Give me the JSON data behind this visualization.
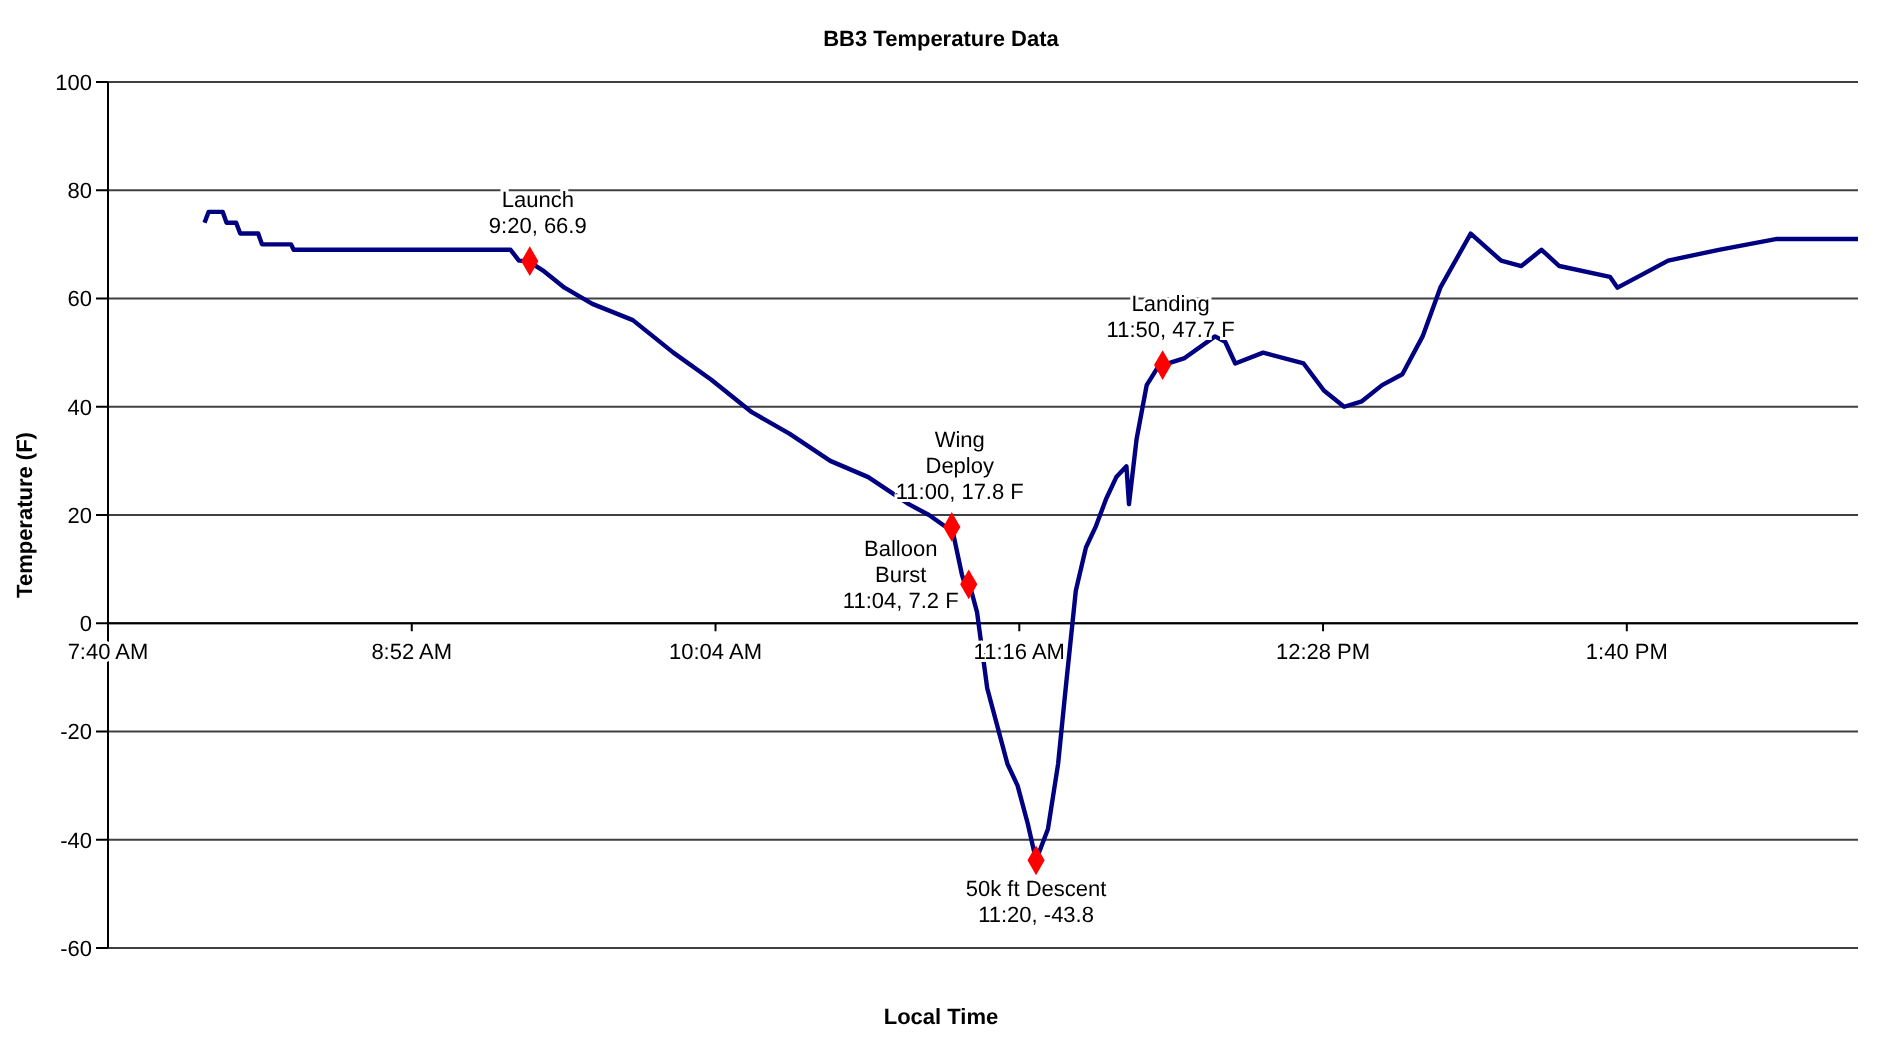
{
  "chart_data": {
    "type": "line",
    "title": "BB3 Temperature Data",
    "xlabel": "Local Time",
    "ylabel": "Temperature (F)",
    "xlim": [
      7.6667,
      14.58
    ],
    "ylim": [
      -60,
      100
    ],
    "xticks": [
      {
        "value": 7.6667,
        "label": "7:40 AM"
      },
      {
        "value": 8.8667,
        "label": "8:52 AM"
      },
      {
        "value": 10.0667,
        "label": "10:04 AM"
      },
      {
        "value": 11.2667,
        "label": "11:16 AM"
      },
      {
        "value": 12.4667,
        "label": "12:28 PM"
      },
      {
        "value": 13.6667,
        "label": "1:40 PM"
      }
    ],
    "yticks": [
      -60,
      -40,
      -20,
      0,
      20,
      40,
      60,
      80,
      100
    ],
    "grid": "y",
    "legend": false,
    "series": [
      {
        "color": "#000080",
        "marker": "none",
        "x": [
          8.048,
          8.064,
          8.12,
          8.135,
          8.173,
          8.189,
          8.26,
          8.275,
          8.39,
          8.4,
          9.257,
          9.29,
          9.327,
          9.39,
          9.47,
          9.58,
          9.74,
          9.9,
          10.05,
          10.21,
          10.36,
          10.52,
          10.67,
          10.83,
          10.91,
          10.97,
          11.0,
          11.04,
          11.06,
          11.07,
          11.1,
          11.14,
          11.18,
          11.22,
          11.26,
          11.3,
          11.333,
          11.38,
          11.42,
          11.45,
          11.49,
          11.53,
          11.57,
          11.61,
          11.65,
          11.69,
          11.7,
          11.73,
          11.77,
          11.81,
          11.833,
          11.92,
          12.04,
          12.08,
          12.12,
          12.23,
          12.39,
          12.47,
          12.55,
          12.62,
          12.7,
          12.78,
          12.86,
          12.93,
          13.05,
          13.17,
          13.25,
          13.33,
          13.4,
          13.6,
          13.63,
          13.71,
          13.83,
          14.03,
          14.26,
          14.58
        ],
        "values": [
          74,
          76,
          76,
          74,
          74,
          72,
          72,
          70,
          70,
          69,
          69,
          67,
          66.9,
          65,
          62,
          59,
          56,
          50,
          45,
          39,
          35,
          30,
          27,
          22,
          20,
          18,
          17.8,
          9,
          6,
          7.2,
          2,
          -12,
          -19,
          -26,
          -30,
          -37,
          -43.8,
          -38,
          -26,
          -12,
          6,
          14,
          18,
          23,
          27,
          29,
          22,
          34,
          44,
          47,
          47.7,
          49,
          53,
          52,
          48,
          50,
          48,
          43,
          40,
          41,
          44,
          46,
          53,
          62,
          72,
          67,
          66,
          69,
          66,
          64,
          62,
          64,
          67,
          69,
          71,
          71
        ]
      },
      {
        "type": "scatter",
        "color": "#ff0000",
        "marker": "diamond",
        "x": [
          9.333,
          11.0,
          11.067,
          11.333,
          11.833
        ],
        "values": [
          66.9,
          17.8,
          7.2,
          -43.8,
          47.7
        ]
      }
    ],
    "annotations": [
      {
        "text": "Launch\n9:20, 66.9",
        "x": 9.333,
        "y": 66.9
      },
      {
        "text": "Wing\nDeploy\n11:00, 17.8 F",
        "x": 11.0,
        "y": 17.8
      },
      {
        "text": "Balloon\nBurst\n11:04, 7.2 F",
        "x": 11.067,
        "y": 7.2
      },
      {
        "text": "50k ft Descent\n11:20, -43.8",
        "x": 11.333,
        "y": -43.8
      },
      {
        "text": "Landing\n11:50, 47.7 F",
        "x": 11.833,
        "y": 47.7
      }
    ]
  }
}
